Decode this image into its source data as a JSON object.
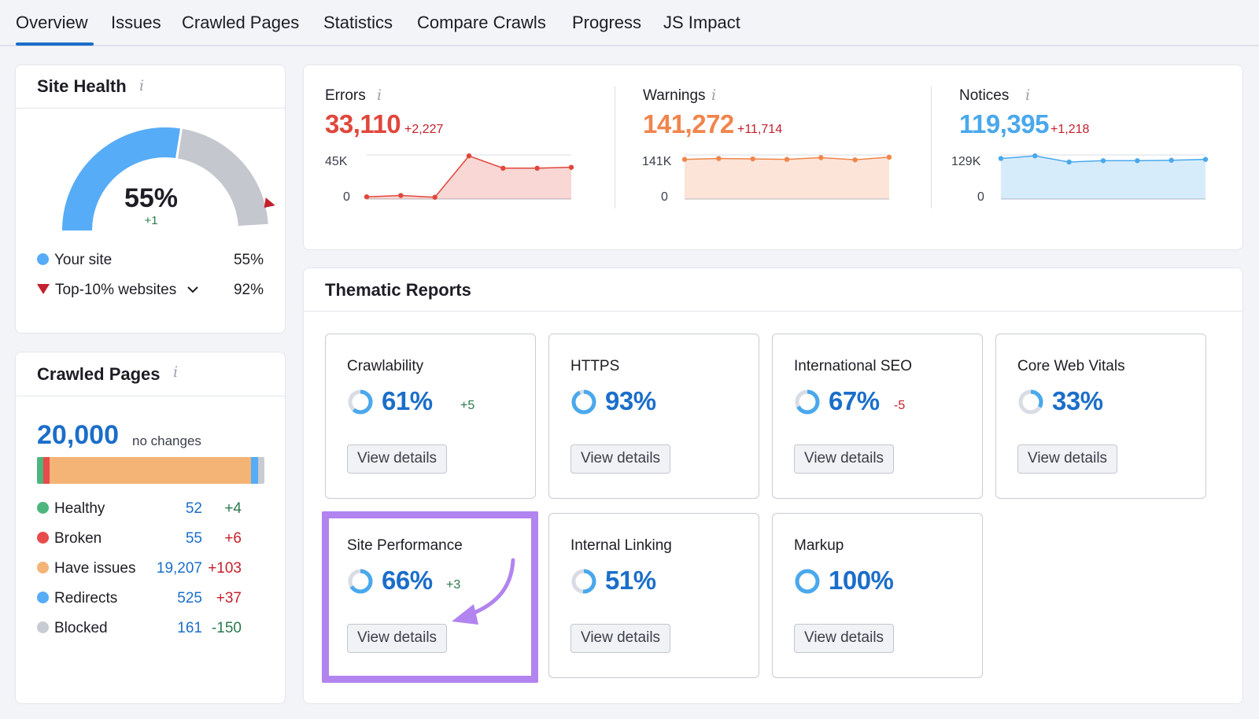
{
  "tabs": [
    "Overview",
    "Issues",
    "Crawled Pages",
    "Statistics",
    "Compare Crawls",
    "Progress",
    "JS Impact"
  ],
  "info_icon": "i",
  "site_health": {
    "title": "Site Health",
    "value": "55%",
    "delta": "+1",
    "gauge_fraction": 0.55,
    "top_marker_fraction": 0.92,
    "legend": [
      {
        "label": "Your site",
        "value": "55%",
        "color": "#56acf6",
        "marker": "dot"
      },
      {
        "label": "Top-10% websites",
        "value": "92%",
        "color": "#c4202d",
        "marker": "triangle"
      }
    ]
  },
  "metrics": [
    {
      "label": "Errors",
      "value": "33,110",
      "delta": "+2,227",
      "color": "#e0473c",
      "ymax_label": "45K",
      "ymin_label": "0",
      "points": [
        0.05,
        0.08,
        0.04,
        0.98,
        0.7,
        0.7,
        0.72
      ]
    },
    {
      "label": "Warnings",
      "value": "141,272",
      "delta": "+11,714",
      "color": "#f0854c",
      "ymax_label": "141K",
      "ymin_label": "0",
      "points": [
        0.9,
        0.92,
        0.91,
        0.9,
        0.94,
        0.89,
        0.95
      ]
    },
    {
      "label": "Notices",
      "value": "119,395",
      "delta": "+1,218",
      "color": "#4aa8ec",
      "ymax_label": "129K",
      "ymin_label": "0",
      "points": [
        0.92,
        0.98,
        0.84,
        0.87,
        0.87,
        0.88,
        0.9
      ]
    }
  ],
  "crawled_pages": {
    "title": "Crawled Pages",
    "total": "20,000",
    "total_note": "no changes",
    "rows": [
      {
        "label": "Healthy",
        "count": "52",
        "delta": "+4",
        "color": "#4db67d",
        "delta_color": "#2b7a4b"
      },
      {
        "label": "Broken",
        "count": "55",
        "delta": "+6",
        "color": "#e84b4b",
        "delta_color": "#c4202d"
      },
      {
        "label": "Have issues",
        "count": "19,207",
        "delta": "+103",
        "color": "#f4b476",
        "delta_color": "#c4202d"
      },
      {
        "label": "Redirects",
        "count": "525",
        "delta": "+37",
        "color": "#56acf6",
        "delta_color": "#c4202d"
      },
      {
        "label": "Blocked",
        "count": "161",
        "delta": "-150",
        "color": "#c9cbd2",
        "delta_color": "#2b7a4b"
      }
    ]
  },
  "thematic": {
    "title": "Thematic Reports",
    "button_label": "View details",
    "reports": [
      {
        "name": "Crawlability",
        "pct": "61%",
        "delta": "+5",
        "delta_color": "#2b7a4b",
        "fraction": 0.61
      },
      {
        "name": "HTTPS",
        "pct": "93%",
        "delta": "",
        "delta_color": "#2b7a4b",
        "fraction": 0.93
      },
      {
        "name": "International SEO",
        "pct": "67%",
        "delta": "-5",
        "delta_color": "#c4202d",
        "fraction": 0.67
      },
      {
        "name": "Core Web Vitals",
        "pct": "33%",
        "delta": "",
        "delta_color": "#2b7a4b",
        "fraction": 0.33
      },
      {
        "name": "Site Performance",
        "pct": "66%",
        "delta": "+3",
        "delta_color": "#2b7a4b",
        "fraction": 0.66
      },
      {
        "name": "Internal Linking",
        "pct": "51%",
        "delta": "",
        "delta_color": "#2b7a4b",
        "fraction": 0.51
      },
      {
        "name": "Markup",
        "pct": "100%",
        "delta": "",
        "delta_color": "#2b7a4b",
        "fraction": 1.0
      }
    ]
  },
  "annotation": {
    "arrow_color": "#b184ef",
    "highlight_color": "#b184ef"
  }
}
